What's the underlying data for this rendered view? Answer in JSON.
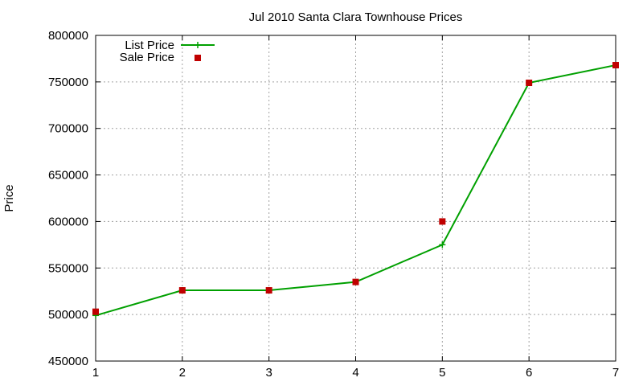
{
  "chart_data": {
    "type": "line",
    "title": "Jul 2010 Santa Clara Townhouse Prices",
    "xlabel": "",
    "ylabel": "Price",
    "xlim": [
      1,
      7
    ],
    "ylim": [
      450000,
      800000
    ],
    "x_ticks": [
      1,
      2,
      3,
      4,
      5,
      6,
      7
    ],
    "y_ticks": [
      450000,
      500000,
      550000,
      600000,
      650000,
      700000,
      750000,
      800000
    ],
    "grid": true,
    "legend_position": "top-left",
    "series": [
      {
        "name": "List Price",
        "style": "line-with-plus-markers",
        "color": "#00a000",
        "x": [
          1,
          2,
          3,
          4,
          5,
          6,
          7
        ],
        "values": [
          499000,
          526000,
          526000,
          535000,
          575000,
          749000,
          768000
        ]
      },
      {
        "name": "Sale Price",
        "style": "square-markers",
        "color": "#c00000",
        "x": [
          1,
          2,
          3,
          4,
          5,
          6,
          7
        ],
        "values": [
          503000,
          526000,
          526000,
          535000,
          600000,
          749000,
          768000
        ]
      }
    ]
  }
}
